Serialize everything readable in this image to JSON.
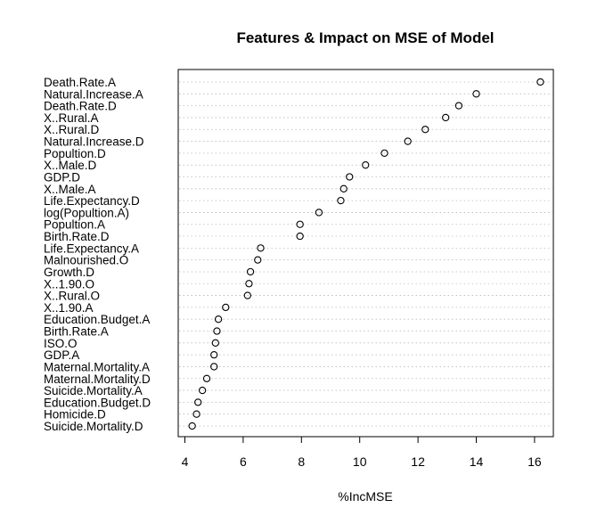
{
  "chart_data": {
    "type": "scatter",
    "title": "Features & Impact on MSE of Model",
    "xlabel": "%IncMSE",
    "ylabel": "",
    "xlim": [
      3.7,
      16.5
    ],
    "xticks": [
      4,
      6,
      8,
      10,
      12,
      14,
      16
    ],
    "grid": "dotted horizontal guide lines per feature",
    "marker": "open circle",
    "points": [
      {
        "label": "Death.Rate.A",
        "value": 16.2
      },
      {
        "label": "Natural.Increase.A",
        "value": 14.0
      },
      {
        "label": "Death.Rate.D",
        "value": 13.4
      },
      {
        "label": "X..Rural.A",
        "value": 12.95
      },
      {
        "label": "X..Rural.D",
        "value": 12.25
      },
      {
        "label": "Natural.Increase.D",
        "value": 11.65
      },
      {
        "label": "Popultion.D",
        "value": 10.85
      },
      {
        "label": "X..Male.D",
        "value": 10.2
      },
      {
        "label": "GDP.D",
        "value": 9.65
      },
      {
        "label": "X..Male.A",
        "value": 9.45
      },
      {
        "label": "Life.Expectancy.D",
        "value": 9.35
      },
      {
        "label": "log(Popultion.A)",
        "value": 8.6
      },
      {
        "label": "Popultion.A",
        "value": 7.95
      },
      {
        "label": "Birth.Rate.D",
        "value": 7.95
      },
      {
        "label": "Life.Expectancy.A",
        "value": 6.6
      },
      {
        "label": "Malnourished.O",
        "value": 6.5
      },
      {
        "label": "Growth.D",
        "value": 6.25
      },
      {
        "label": "X..1.90.O",
        "value": 6.2
      },
      {
        "label": "X..Rural.O",
        "value": 6.15
      },
      {
        "label": "X..1.90.A",
        "value": 5.4
      },
      {
        "label": "Education.Budget.A",
        "value": 5.15
      },
      {
        "label": "Birth.Rate.A",
        "value": 5.1
      },
      {
        "label": "ISO.O",
        "value": 5.05
      },
      {
        "label": "GDP.A",
        "value": 5.0
      },
      {
        "label": "Maternal.Mortality.A",
        "value": 5.0
      },
      {
        "label": "Maternal.Mortality.D",
        "value": 4.75
      },
      {
        "label": "Suicide.Mortality.A",
        "value": 4.6
      },
      {
        "label": "Education.Budget.D",
        "value": 4.45
      },
      {
        "label": "Homicide.D",
        "value": 4.4
      },
      {
        "label": "Suicide.Mortality.D",
        "value": 4.25
      }
    ]
  }
}
